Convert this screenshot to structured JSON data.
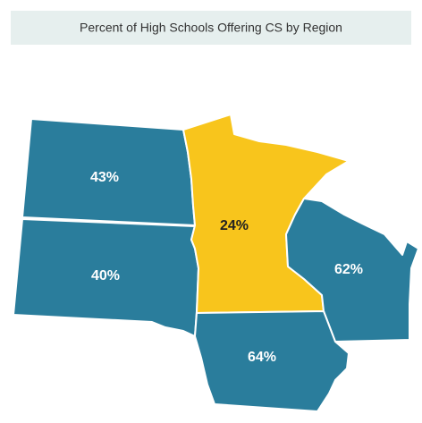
{
  "title": "Percent of High Schools Offering CS by Region",
  "regions": [
    {
      "label": "43%",
      "color": "#2a7d9c",
      "text_color": "#ffffff"
    },
    {
      "label": "40%",
      "color": "#2a7d9c",
      "text_color": "#ffffff"
    },
    {
      "label": "24%",
      "color": "#f8c51c",
      "text_color": "#222222"
    },
    {
      "label": "62%",
      "color": "#2a7d9c",
      "text_color": "#ffffff"
    },
    {
      "label": "64%",
      "color": "#2a7d9c",
      "text_color": "#ffffff"
    }
  ]
}
